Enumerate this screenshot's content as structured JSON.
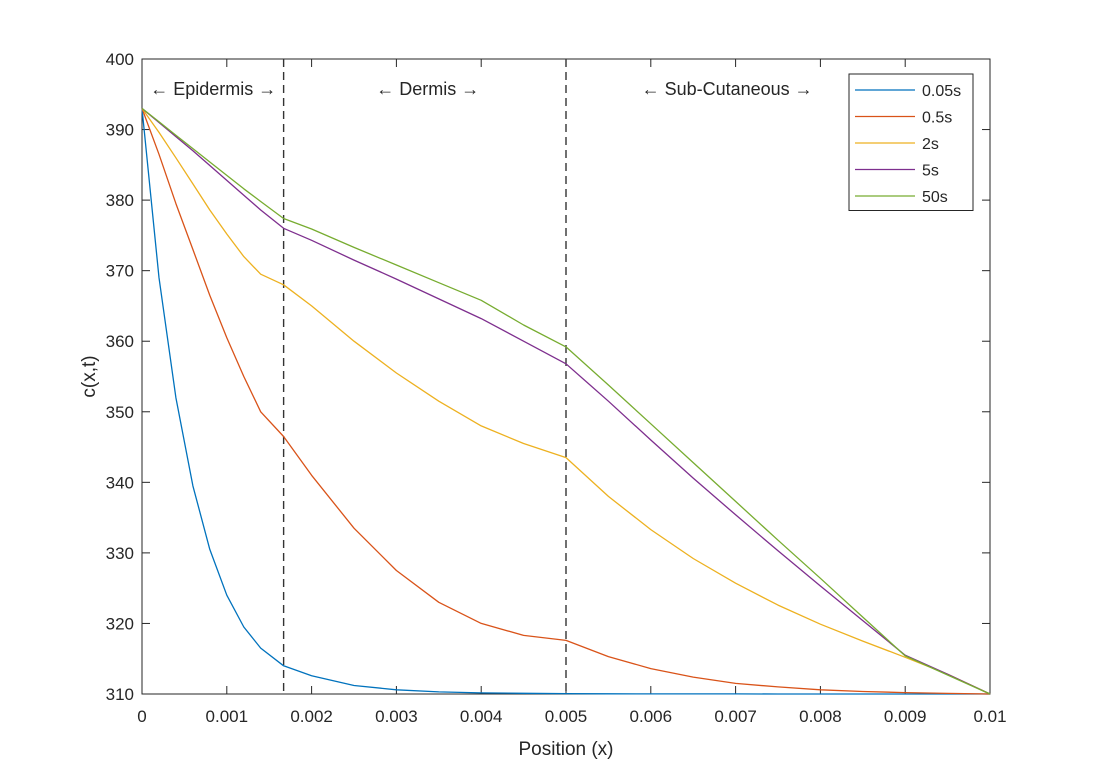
{
  "chart_data": {
    "type": "line",
    "title": "",
    "xlabel": "Position (x)",
    "ylabel": "c(x,t)",
    "xlim": [
      0,
      0.01
    ],
    "ylim": [
      310,
      400
    ],
    "x_ticks": [
      0,
      0.001,
      0.002,
      0.003,
      0.004,
      0.005,
      0.006,
      0.007,
      0.008,
      0.009,
      0.01
    ],
    "x_tick_labels": [
      "0",
      "0.001",
      "0.002",
      "0.003",
      "0.004",
      "0.005",
      "0.006",
      "0.007",
      "0.008",
      "0.009",
      "0.01"
    ],
    "y_ticks": [
      310,
      320,
      330,
      340,
      350,
      360,
      370,
      380,
      390,
      400
    ],
    "y_tick_labels": [
      "310",
      "320",
      "330",
      "340",
      "350",
      "360",
      "370",
      "380",
      "390",
      "400"
    ],
    "grid": false,
    "legend_position": "top-right",
    "boundaries": [
      0.00167,
      0.005
    ],
    "regions": [
      {
        "label": "← Epidermis →",
        "x": 0.00084
      },
      {
        "label": "← Dermis →",
        "x": 0.00337
      },
      {
        "label": "← Sub-Cutaneous →",
        "x": 0.0069
      }
    ],
    "x": [
      0,
      0.0002,
      0.0004,
      0.0006,
      0.0008,
      0.001,
      0.0012,
      0.0014,
      0.00167,
      0.002,
      0.0025,
      0.003,
      0.0035,
      0.004,
      0.0045,
      0.005,
      0.0055,
      0.006,
      0.0065,
      0.007,
      0.0075,
      0.008,
      0.0085,
      0.009,
      0.0095,
      0.01
    ],
    "series": [
      {
        "name": "0.05s",
        "color": "#0072BD",
        "values": [
          393,
          369,
          352,
          339.5,
          330.5,
          324,
          319.5,
          316.5,
          314,
          312.6,
          311.2,
          310.6,
          310.3,
          310.15,
          310.1,
          310.05,
          310.03,
          310.02,
          310.01,
          310.01,
          310,
          310,
          310,
          310,
          310,
          310
        ]
      },
      {
        "name": "0.5s",
        "color": "#D95319",
        "values": [
          393,
          386.5,
          379.5,
          373,
          366.5,
          360.5,
          355,
          350,
          346.5,
          341,
          333.5,
          327.5,
          323,
          320,
          318.3,
          317.6,
          315.3,
          313.6,
          312.4,
          311.5,
          311,
          310.6,
          310.35,
          310.2,
          310.08,
          310
        ]
      },
      {
        "name": "2s",
        "color": "#EDB120",
        "values": [
          393,
          389.6,
          386,
          382.3,
          378.6,
          375.2,
          372,
          369.5,
          368,
          365,
          360,
          355.5,
          351.5,
          348,
          345.5,
          343.5,
          338,
          333.3,
          329.2,
          325.7,
          322.6,
          319.9,
          317.5,
          315.2,
          312.8,
          310
        ]
      },
      {
        "name": "5s",
        "color": "#7E2F8E",
        "values": [
          393,
          391,
          389,
          387,
          384.9,
          382.8,
          380.7,
          378.6,
          376,
          374.3,
          371.5,
          368.8,
          366,
          363.2,
          360,
          356.8,
          351.5,
          346,
          340.6,
          335.4,
          330.3,
          325.3,
          320.4,
          315.5,
          312.8,
          310
        ]
      },
      {
        "name": "50s",
        "color": "#77AC30",
        "values": [
          393,
          391.1,
          389.2,
          387.3,
          385.4,
          383.5,
          381.6,
          379.8,
          377.4,
          375.9,
          373.3,
          370.8,
          368.3,
          365.8,
          362.3,
          359.2,
          353.8,
          348.3,
          342.8,
          337.3,
          331.8,
          326.4,
          320.9,
          315.4,
          312.7,
          310
        ]
      }
    ]
  }
}
